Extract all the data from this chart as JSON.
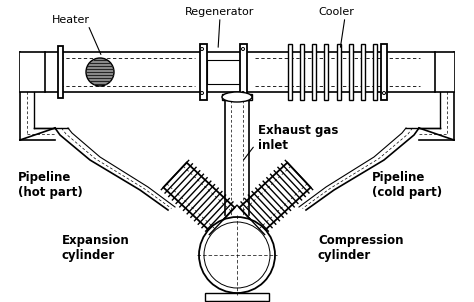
{
  "bg_color": "#ffffff",
  "line_color": "#000000",
  "labels": {
    "heater": "Heater",
    "regenerator": "Regenerator",
    "cooler": "Cooler",
    "exhaust": "Exhaust gas\ninlet",
    "pipeline_hot": "Pipeline\n(hot part)",
    "pipeline_cold": "Pipeline\n(cold part)",
    "expansion": "Expansion\ncylinder",
    "compression": "Compression\ncylinder"
  },
  "figsize": [
    4.74,
    3.02
  ],
  "dpi": 100
}
